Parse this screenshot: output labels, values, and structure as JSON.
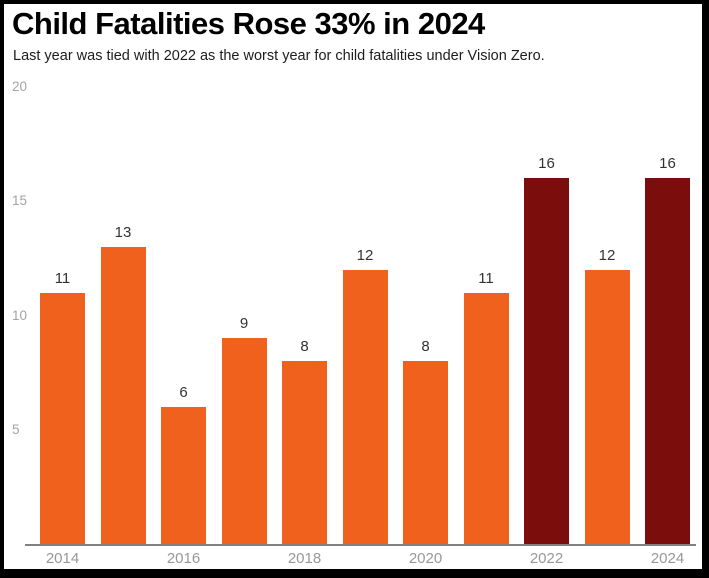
{
  "chart_data": {
    "type": "bar",
    "title": "Child Fatalities Rose 33% in 2024",
    "subtitle": "Last year was tied with 2022 as the worst year for child fatalities under Vision Zero.",
    "categories": [
      "2014",
      "2015",
      "2016",
      "2017",
      "2018",
      "2019",
      "2020",
      "2021",
      "2022",
      "2023",
      "2024"
    ],
    "values": [
      11,
      13,
      6,
      9,
      8,
      12,
      8,
      11,
      16,
      12,
      16
    ],
    "highlight_categories": [
      "2022",
      "2024"
    ],
    "value_labels_shown": true,
    "y_ticks": [
      5,
      10,
      15,
      20
    ],
    "ylim": [
      0,
      20
    ],
    "x_tick_labels": [
      "2014",
      "2016",
      "2018",
      "2020",
      "2022",
      "2024"
    ],
    "grid": false,
    "legend": "none",
    "colors": {
      "bar_default": "#F0611E",
      "bar_highlight": "#7B0D0D",
      "axis_line": "#808080",
      "y_tick_label": "#A3A3A3",
      "x_tick_label": "#989898",
      "value_label": "#333333",
      "title": "#000000",
      "subtitle": "#1D1D1D",
      "frame_border": "#000000",
      "background": "#FFFFFF"
    }
  }
}
